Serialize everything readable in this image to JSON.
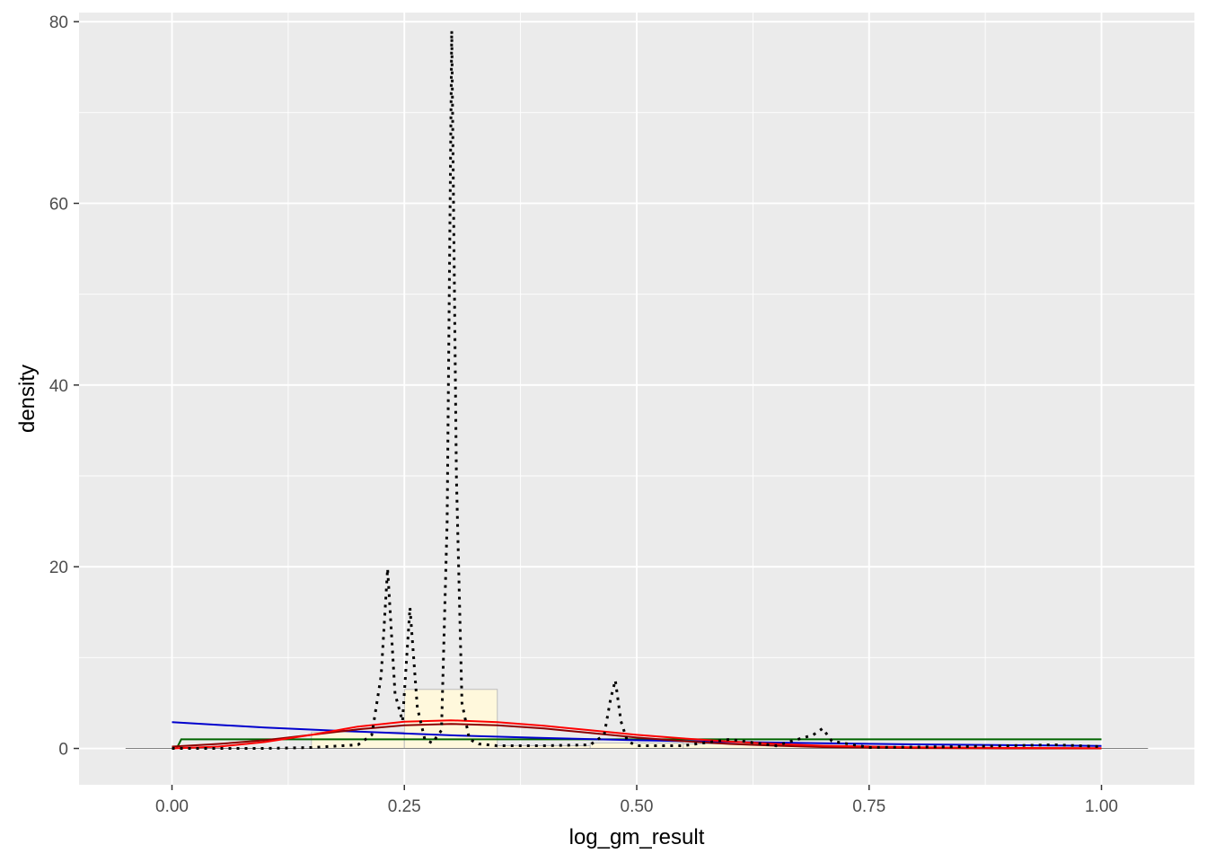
{
  "chart_data": {
    "type": "area",
    "title": "",
    "xlabel": "log_gm_result",
    "ylabel": "density",
    "xlim": [
      -0.1,
      1.1
    ],
    "ylim": [
      -4,
      81
    ],
    "x_ticks": [
      0,
      0.25,
      0.5,
      0.75,
      1.0
    ],
    "x_tick_labels": [
      "0.00",
      "0.25",
      "0.50",
      "0.75",
      "1.00"
    ],
    "y_ticks": [
      0,
      20,
      40,
      60,
      80
    ],
    "y_tick_labels": [
      "0",
      "20",
      "40",
      "60",
      "80"
    ],
    "grid": true,
    "legend": "none",
    "colors": {
      "panel": "#ebebeb",
      "grid": "#ffffff",
      "histogram_fill": "#fff8dc",
      "histogram_border": "#bdbdbd",
      "empirical_density": "#000000",
      "uniform_fit": "#006400",
      "exponential_fit": "#0000cd",
      "normal_fit": "#8b0000",
      "lognormal_fit": "#ff0000",
      "baseline": "#808080"
    },
    "histogram": {
      "bins": [
        {
          "x0": 0.15,
          "x1": 0.25,
          "density": 1.8
        },
        {
          "x0": 0.25,
          "x1": 0.35,
          "density": 6.5
        },
        {
          "x0": 0.35,
          "x1": 0.45,
          "density": 0.3
        },
        {
          "x0": 0.45,
          "x1": 0.55,
          "density": 0.6
        },
        {
          "x0": 0.55,
          "x1": 0.65,
          "density": 0.5
        },
        {
          "x0": 0.65,
          "x1": 0.75,
          "density": 0.3
        }
      ]
    },
    "empirical_density": {
      "x": [
        0.0,
        0.05,
        0.1,
        0.15,
        0.2,
        0.215,
        0.225,
        0.232,
        0.24,
        0.248,
        0.256,
        0.264,
        0.272,
        0.28,
        0.29,
        0.296,
        0.301,
        0.306,
        0.312,
        0.32,
        0.33,
        0.35,
        0.4,
        0.45,
        0.465,
        0.472,
        0.477,
        0.483,
        0.49,
        0.5,
        0.55,
        0.6,
        0.65,
        0.69,
        0.7,
        0.71,
        0.75,
        0.85,
        0.95,
        1.0
      ],
      "y": [
        0.0,
        0.0,
        0.0,
        0.1,
        0.4,
        1.5,
        8.0,
        19.8,
        6.0,
        3.0,
        15.5,
        4.5,
        1.0,
        0.6,
        2.0,
        25.0,
        79.0,
        30.0,
        5.0,
        1.0,
        0.5,
        0.3,
        0.3,
        0.4,
        1.5,
        5.5,
        7.5,
        3.0,
        0.8,
        0.3,
        0.3,
        1.0,
        0.3,
        1.5,
        2.2,
        0.8,
        0.1,
        0.2,
        0.4,
        0.2
      ]
    },
    "series": [
      {
        "name": "",
        "key": "uniform",
        "x": [
          0.005,
          0.01,
          0.99,
          1.0
        ],
        "y": [
          0.0,
          1.0,
          1.0,
          1.0
        ]
      },
      {
        "name": "",
        "key": "exponential",
        "x": [
          0.0,
          0.1,
          0.2,
          0.3,
          0.4,
          0.5,
          0.6,
          0.7,
          0.8,
          0.9,
          1.0
        ],
        "y": [
          2.9,
          2.3,
          1.85,
          1.45,
          1.15,
          0.9,
          0.72,
          0.57,
          0.45,
          0.36,
          0.28
        ]
      },
      {
        "name": "",
        "key": "normal",
        "x": [
          0.0,
          0.05,
          0.1,
          0.15,
          0.2,
          0.25,
          0.3,
          0.35,
          0.4,
          0.45,
          0.5,
          0.55,
          0.6,
          0.65,
          0.7,
          0.8,
          0.9,
          1.0
        ],
        "y": [
          0.2,
          0.5,
          0.9,
          1.5,
          2.1,
          2.55,
          2.7,
          2.55,
          2.2,
          1.7,
          1.2,
          0.8,
          0.5,
          0.3,
          0.15,
          0.04,
          0.0,
          0.0
        ]
      },
      {
        "name": "",
        "key": "lognormal",
        "x": [
          0.0,
          0.05,
          0.1,
          0.15,
          0.2,
          0.25,
          0.3,
          0.35,
          0.4,
          0.45,
          0.5,
          0.55,
          0.6,
          0.65,
          0.7,
          0.8,
          0.9,
          1.0
        ],
        "y": [
          0.0,
          0.2,
          0.7,
          1.5,
          2.4,
          2.95,
          3.1,
          2.9,
          2.5,
          2.0,
          1.5,
          1.1,
          0.75,
          0.5,
          0.3,
          0.12,
          0.05,
          0.02
        ]
      }
    ],
    "baseline": {
      "x": [
        -0.05,
        1.05
      ],
      "y": [
        0,
        0
      ]
    }
  }
}
